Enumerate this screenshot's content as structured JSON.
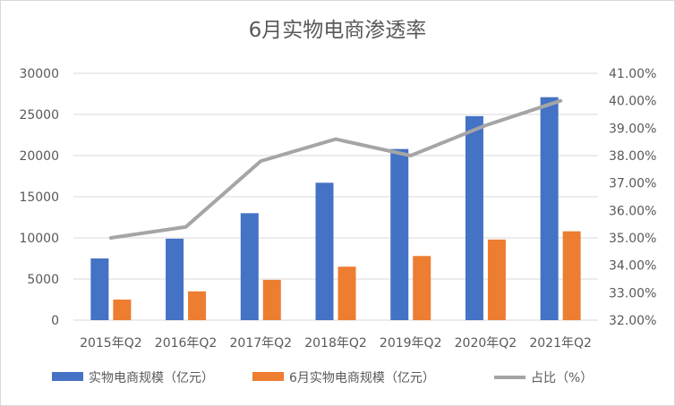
{
  "chart_data": {
    "type": "bar",
    "title": "6月实物电商渗透率",
    "categories": [
      "2015年Q2",
      "2016年Q2",
      "2017年Q2",
      "2018年Q2",
      "2019年Q2",
      "2020年Q2",
      "2021年Q2"
    ],
    "series": [
      {
        "name": "实物电商规模（亿元）",
        "type": "bar",
        "axis": "left",
        "color": "#4472C4",
        "values": [
          7500,
          9900,
          13000,
          16700,
          20800,
          24800,
          27100
        ]
      },
      {
        "name": "6月实物电商规模（亿元）",
        "type": "bar",
        "axis": "left",
        "color": "#ED7D31",
        "values": [
          2500,
          3500,
          4900,
          6500,
          7800,
          9800,
          10800
        ]
      },
      {
        "name": "占比（%）",
        "type": "line",
        "axis": "right",
        "color": "#A5A5A5",
        "values": [
          35.0,
          35.4,
          37.8,
          38.6,
          38.0,
          39.1,
          40.0
        ]
      }
    ],
    "ylim_left": [
      0,
      30000
    ],
    "yticks_left": [
      "0",
      "5000",
      "10000",
      "15000",
      "20000",
      "25000",
      "30000"
    ],
    "ylim_right": [
      32.0,
      41.0
    ],
    "yticks_right": [
      "32.00%",
      "33.00%",
      "34.00%",
      "35.00%",
      "36.00%",
      "37.00%",
      "38.00%",
      "39.00%",
      "40.00%",
      "41.00%"
    ],
    "grid": true,
    "legend_position": "bottom"
  }
}
